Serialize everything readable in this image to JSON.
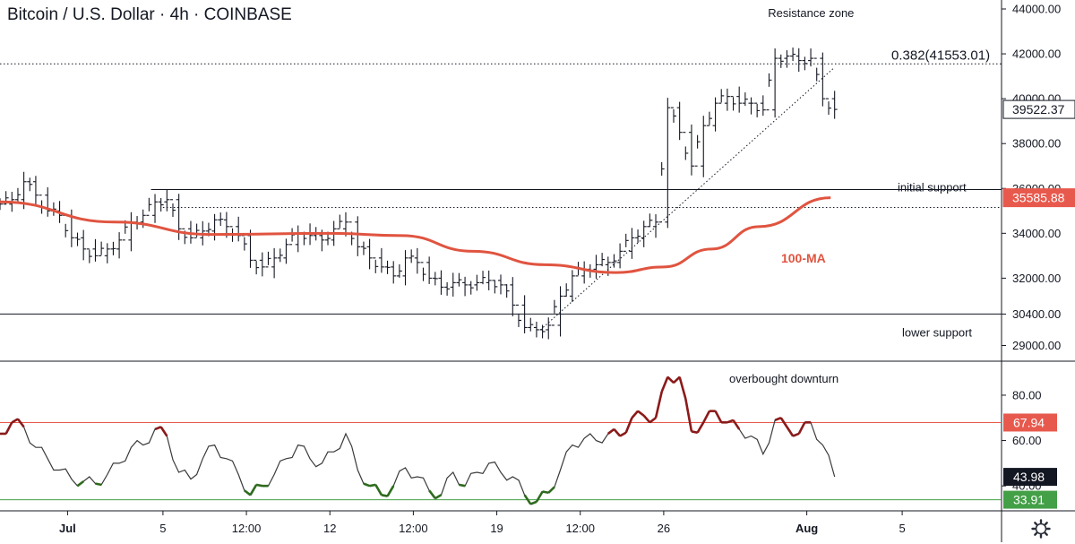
{
  "header": {
    "symbol": "Bitcoin / U.S. Dollar",
    "interval": "4h",
    "exchange": "COINBASE",
    "separator": "·"
  },
  "chart_data": [
    {
      "type": "candlestick",
      "title": "Bitcoin / U.S. Dollar · 4h · COINBASE",
      "ylim": [
        28300,
        44400
      ],
      "y_ticks": [
        {
          "value": 44000,
          "label": "44000.00"
        },
        {
          "value": 42000,
          "label": "42000.00"
        },
        {
          "value": 40000,
          "label": "40000.00"
        },
        {
          "value": 38000,
          "label": "38000.00"
        },
        {
          "value": 36000,
          "label": "36000.00"
        },
        {
          "value": 34000,
          "label": "34000.00"
        },
        {
          "value": 32000,
          "label": "32000.00"
        },
        {
          "value": 30400,
          "label": "30400.00"
        },
        {
          "value": 29000,
          "label": "29000.00"
        }
      ],
      "x_ticks": [
        {
          "label": "Jul",
          "date": "2021-07-01"
        },
        {
          "label": "5",
          "date": "2021-07-05"
        },
        {
          "label": "12:00",
          "date": "2021-07-08 12:00"
        },
        {
          "label": "12",
          "date": "2021-07-12"
        },
        {
          "label": "12:00",
          "date": "2021-07-15 12:00"
        },
        {
          "label": "19",
          "date": "2021-07-19"
        },
        {
          "label": "12:00",
          "date": "2021-07-22 12:00"
        },
        {
          "label": "26",
          "date": "2021-07-26"
        },
        {
          "label": "Aug",
          "date": "2021-08-01"
        },
        {
          "label": "5",
          "date": "2021-08-05"
        }
      ],
      "xlim": [
        "2021-06-28 04:00",
        "2021-08-09 04:00"
      ],
      "close_series": [
        [
          "2021-06-28 04:00",
          35300
        ],
        [
          "2021-06-28 16:00",
          35500
        ],
        [
          "2021-06-29 04:00",
          36300
        ],
        [
          "2021-06-29 16:00",
          35700
        ],
        [
          "2021-06-30 04:00",
          35000
        ],
        [
          "2021-06-30 16:00",
          34800
        ],
        [
          "2021-07-01 04:00",
          33800
        ],
        [
          "2021-07-01 16:00",
          33300
        ],
        [
          "2021-07-02 04:00",
          33000
        ],
        [
          "2021-07-02 16:00",
          33300
        ],
        [
          "2021-07-03 04:00",
          33700
        ],
        [
          "2021-07-03 16:00",
          34500
        ],
        [
          "2021-07-04 04:00",
          34800
        ],
        [
          "2021-07-04 16:00",
          35400
        ],
        [
          "2021-07-05 04:00",
          35500
        ],
        [
          "2021-07-05 16:00",
          34200
        ],
        [
          "2021-07-06 04:00",
          33800
        ],
        [
          "2021-07-06 16:00",
          34100
        ],
        [
          "2021-07-07 04:00",
          34600
        ],
        [
          "2021-07-07 16:00",
          34300
        ],
        [
          "2021-07-08 04:00",
          33900
        ],
        [
          "2021-07-08 16:00",
          32800
        ],
        [
          "2021-07-09 04:00",
          32500
        ],
        [
          "2021-07-09 16:00",
          32900
        ],
        [
          "2021-07-10 04:00",
          33500
        ],
        [
          "2021-07-10 16:00",
          34000
        ],
        [
          "2021-07-11 04:00",
          33900
        ],
        [
          "2021-07-11 16:00",
          33700
        ],
        [
          "2021-07-12 04:00",
          34200
        ],
        [
          "2021-07-12 16:00",
          34500
        ],
        [
          "2021-07-13 04:00",
          33400
        ],
        [
          "2021-07-13 16:00",
          32900
        ],
        [
          "2021-07-14 04:00",
          32500
        ],
        [
          "2021-07-14 16:00",
          32100
        ],
        [
          "2021-07-15 04:00",
          32900
        ],
        [
          "2021-07-15 16:00",
          32700
        ],
        [
          "2021-07-16 04:00",
          32000
        ],
        [
          "2021-07-16 16:00",
          31600
        ],
        [
          "2021-07-17 04:00",
          31800
        ],
        [
          "2021-07-17 16:00",
          31700
        ],
        [
          "2021-07-18 04:00",
          31800
        ],
        [
          "2021-07-18 16:00",
          31900
        ],
        [
          "2021-07-19 04:00",
          31700
        ],
        [
          "2021-07-19 16:00",
          30800
        ],
        [
          "2021-07-20 04:00",
          29800
        ],
        [
          "2021-07-20 16:00",
          29700
        ],
        [
          "2021-07-21 04:00",
          29900
        ],
        [
          "2021-07-21 16:00",
          31200
        ],
        [
          "2021-07-22 04:00",
          32100
        ],
        [
          "2021-07-22 16:00",
          32400
        ],
        [
          "2021-07-23 04:00",
          32600
        ],
        [
          "2021-07-23 16:00",
          32700
        ],
        [
          "2021-07-24 04:00",
          33200
        ],
        [
          "2021-07-24 16:00",
          33800
        ],
        [
          "2021-07-25 04:00",
          34300
        ],
        [
          "2021-07-25 16:00",
          34500
        ],
        [
          "2021-07-26 04:00",
          39600
        ],
        [
          "2021-07-26 16:00",
          38500
        ],
        [
          "2021-07-27 04:00",
          37000
        ],
        [
          "2021-07-27 16:00",
          38800
        ],
        [
          "2021-07-28 04:00",
          39800
        ],
        [
          "2021-07-28 16:00",
          40100
        ],
        [
          "2021-07-29 04:00",
          39800
        ],
        [
          "2021-07-29 16:00",
          39800
        ],
        [
          "2021-07-30 04:00",
          39500
        ],
        [
          "2021-07-30 16:00",
          41800
        ],
        [
          "2021-07-31 04:00",
          41900
        ],
        [
          "2021-07-31 16:00",
          41700
        ],
        [
          "2021-08-01 04:00",
          41800
        ],
        [
          "2021-08-01 16:00",
          40000
        ],
        [
          "2021-08-02 04:00",
          39522.37
        ]
      ],
      "moving_average": {
        "name": "100-MA",
        "points": [
          [
            "2021-06-28 04:00",
            35400
          ],
          [
            "2021-07-03 00:00",
            34500
          ],
          [
            "2021-07-07 00:00",
            33950
          ],
          [
            "2021-07-12 00:00",
            34000
          ],
          [
            "2021-07-15 00:00",
            33900
          ],
          [
            "2021-07-18 00:00",
            33200
          ],
          [
            "2021-07-21 00:00",
            32600
          ],
          [
            "2021-07-24 00:00",
            32250
          ],
          [
            "2021-07-26 00:00",
            32500
          ],
          [
            "2021-07-28 00:00",
            33300
          ],
          [
            "2021-07-30 00:00",
            34300
          ],
          [
            "2021-08-02 00:00",
            35585.88
          ]
        ]
      },
      "levels": [
        {
          "name": "fib-0.382",
          "value": 41553.01,
          "style": "dotted",
          "label": "0.382(41553.01)"
        },
        {
          "name": "initial-support",
          "value": 35950,
          "style": "solid",
          "label": "initial support",
          "from": "2021-07-04 12:00"
        },
        {
          "name": "support-dotted",
          "value": 35150,
          "style": "dotted",
          "from": "2021-07-05 00:00"
        },
        {
          "name": "lower-support",
          "value": 30400,
          "style": "solid",
          "label": "lower support"
        }
      ],
      "trendline": {
        "from": [
          "2021-07-20 20:00",
          29700
        ],
        "to": [
          "2021-08-02 04:00",
          41400
        ],
        "style": "dotted"
      },
      "annotations": [
        {
          "text": "Resistance zone",
          "at": [
            "2021-07-31 12:00",
            43800
          ]
        },
        {
          "text": "100-MA",
          "at": [
            "2021-07-31 00:00",
            32700
          ],
          "color": "#e05440"
        }
      ],
      "price_labels": [
        {
          "value": 39522.37,
          "label": "39522.37",
          "bg": "#ffffff",
          "fg": "#131722"
        },
        {
          "value": 35585.88,
          "label": "35585.88",
          "bg": "#e8594d",
          "fg": "#ffffff"
        }
      ]
    },
    {
      "type": "line",
      "title": "",
      "ylim": [
        29,
        95
      ],
      "y_ticks": [
        {
          "value": 80,
          "label": "80.00"
        },
        {
          "value": 60,
          "label": "60.00"
        },
        {
          "value": 40,
          "label": "40.00"
        }
      ],
      "levels": [
        {
          "value": 67.94,
          "label": "67.94",
          "color": "#e8594d"
        },
        {
          "value": 33.91,
          "label": "33.91",
          "color": "#43a047"
        }
      ],
      "current": {
        "value": 43.98,
        "label": "43.98"
      },
      "annotations": [
        {
          "text": "overbought downturn",
          "at": [
            "2021-07-31 00:00",
            87
          ]
        }
      ],
      "series": [
        [
          [
            "2021-06-28 04:00",
            63
          ],
          [
            "2021-06-28 16:00",
            68
          ],
          [
            "2021-06-29 04:00",
            66
          ],
          [
            "2021-06-29 16:00",
            57
          ],
          [
            "2021-06-30 04:00",
            52
          ],
          [
            "2021-06-30 16:00",
            47
          ],
          [
            "2021-07-01 04:00",
            43
          ],
          [
            "2021-07-01 16:00",
            42
          ],
          [
            "2021-07-02 04:00",
            41
          ],
          [
            "2021-07-02 16:00",
            45
          ],
          [
            "2021-07-03 04:00",
            50
          ],
          [
            "2021-07-03 16:00",
            57
          ],
          [
            "2021-07-04 04:00",
            58
          ],
          [
            "2021-07-04 16:00",
            65
          ],
          [
            "2021-07-05 04:00",
            62
          ],
          [
            "2021-07-05 16:00",
            46
          ],
          [
            "2021-07-06 04:00",
            43
          ],
          [
            "2021-07-06 16:00",
            52
          ],
          [
            "2021-07-07 04:00",
            58
          ],
          [
            "2021-07-07 16:00",
            52
          ],
          [
            "2021-07-08 04:00",
            45
          ],
          [
            "2021-07-08 16:00",
            36
          ],
          [
            "2021-07-09 04:00",
            40
          ],
          [
            "2021-07-09 16:00",
            45
          ],
          [
            "2021-07-10 04:00",
            52
          ],
          [
            "2021-07-10 16:00",
            58
          ],
          [
            "2021-07-11 04:00",
            52
          ],
          [
            "2021-07-11 16:00",
            50
          ],
          [
            "2021-07-12 04:00",
            55
          ],
          [
            "2021-07-12 16:00",
            63
          ],
          [
            "2021-07-13 04:00",
            47
          ],
          [
            "2021-07-13 16:00",
            40
          ],
          [
            "2021-07-14 04:00",
            36
          ],
          [
            "2021-07-14 16:00",
            40
          ],
          [
            "2021-07-15 04:00",
            48
          ],
          [
            "2021-07-15 16:00",
            44
          ],
          [
            "2021-07-16 04:00",
            38
          ],
          [
            "2021-07-16 16:00",
            36
          ],
          [
            "2021-07-17 04:00",
            46
          ],
          [
            "2021-07-17 16:00",
            40
          ],
          [
            "2021-07-18 04:00",
            46
          ],
          [
            "2021-07-18 16:00",
            50
          ],
          [
            "2021-07-19 04:00",
            46
          ],
          [
            "2021-07-19 16:00",
            44
          ],
          [
            "2021-07-20 04:00",
            36
          ],
          [
            "2021-07-20 16:00",
            33
          ],
          [
            "2021-07-21 04:00",
            37
          ],
          [
            "2021-07-21 16:00",
            47
          ],
          [
            "2021-07-22 04:00",
            58
          ],
          [
            "2021-07-22 16:00",
            61
          ],
          [
            "2021-07-23 04:00",
            60
          ],
          [
            "2021-07-23 16:00",
            63
          ],
          [
            "2021-07-24 04:00",
            62
          ],
          [
            "2021-07-24 16:00",
            70
          ],
          [
            "2021-07-25 04:00",
            71
          ],
          [
            "2021-07-25 16:00",
            70
          ],
          [
            "2021-07-26 04:00",
            88
          ],
          [
            "2021-07-26 16:00",
            88
          ],
          [
            "2021-07-27 04:00",
            64
          ],
          [
            "2021-07-27 16:00",
            68
          ],
          [
            "2021-07-28 04:00",
            73
          ],
          [
            "2021-07-28 16:00",
            68
          ],
          [
            "2021-07-29 04:00",
            65
          ],
          [
            "2021-07-29 16:00",
            62
          ],
          [
            "2021-07-30 04:00",
            54
          ],
          [
            "2021-07-30 16:00",
            69
          ],
          [
            "2021-07-31 04:00",
            66
          ],
          [
            "2021-07-31 16:00",
            63
          ],
          [
            "2021-08-01 04:00",
            68
          ],
          [
            "2021-08-01 16:00",
            58
          ],
          [
            "2021-08-02 04:00",
            44
          ]
        ]
      ]
    }
  ],
  "x_axis": {
    "tick_labels": [
      "Jul",
      "5",
      "12:00",
      "12",
      "12:00",
      "19",
      "12:00",
      "26",
      "Aug",
      "5"
    ]
  },
  "settings": {
    "icon": "gear-icon"
  },
  "colors": {
    "candle": "#131722",
    "ma": "#e05440",
    "rsi_line": "#3a3a3a",
    "rsi_overbought": "#8b1a1a",
    "rsi_oversold": "#2e6b1e",
    "over_level": "#e8594d",
    "under_level": "#43a047"
  }
}
